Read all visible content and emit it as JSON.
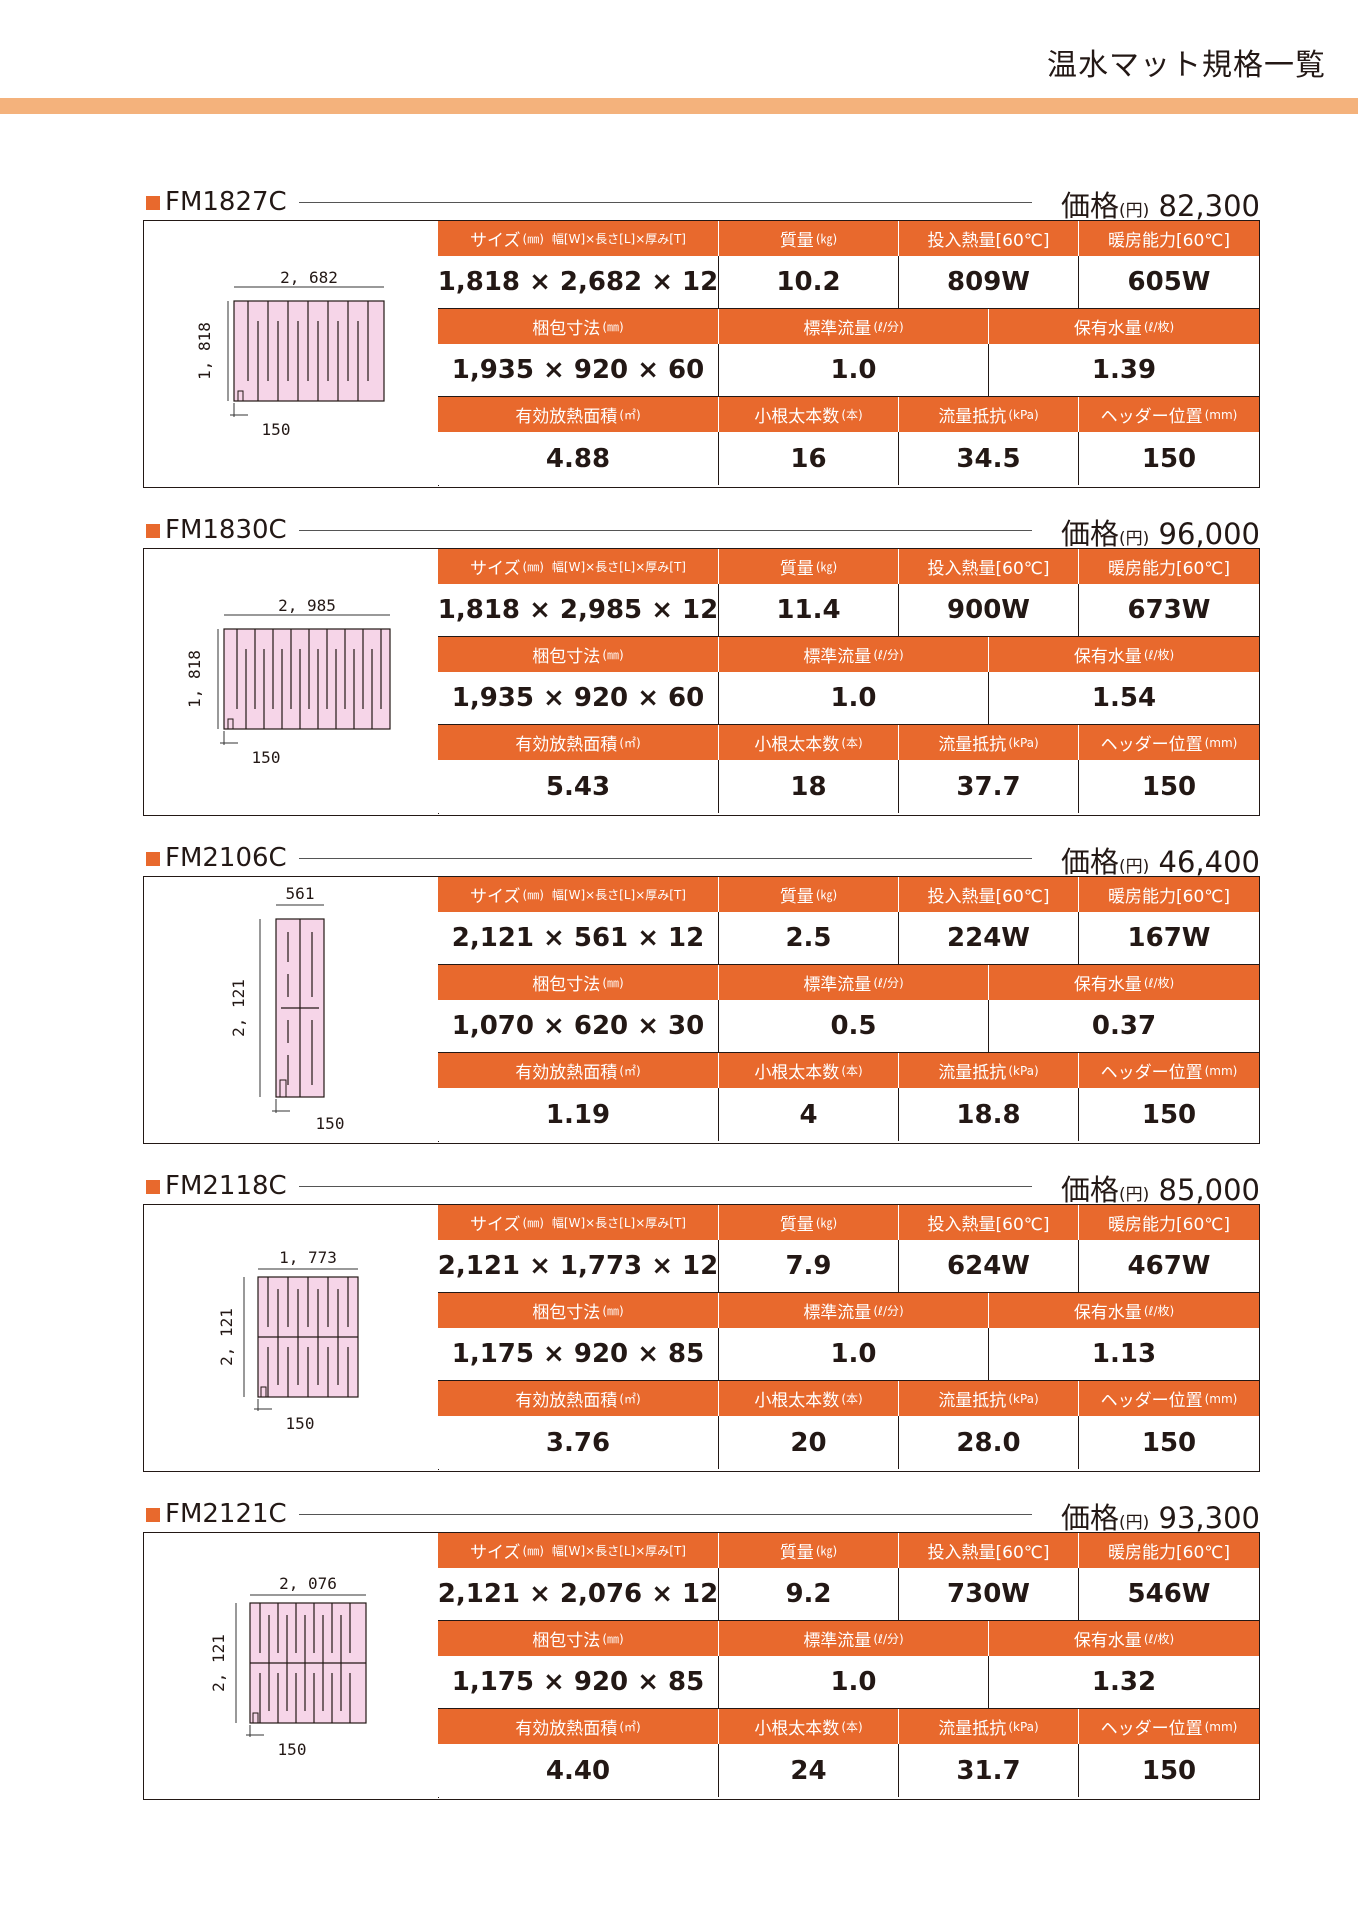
{
  "page_title": "温水マット規格一覧",
  "accent_color": "#e8692d",
  "band_color": "#f4b27c",
  "mat_color": "#f6d5e8",
  "labels": {
    "size": "サイズ",
    "size_unit": "(㎜)",
    "size_detail": "幅[W]×長さ[L]×厚み[T]",
    "mass": "質量",
    "mass_unit": "(㎏)",
    "heat_input": "投入熱量[60℃]",
    "heating_capacity": "暖房能力[60℃]",
    "package": "梱包寸法",
    "package_unit": "(㎜)",
    "std_flow": "標準流量",
    "std_flow_unit": "(ℓ/分)",
    "water_volume": "保有水量",
    "water_volume_unit": "(ℓ/枚)",
    "effective_area": "有効放熱面積",
    "effective_area_unit": "(㎡)",
    "branch_count": "小根太本数",
    "branch_count_unit": "(本)",
    "flow_resistance": "流量抵抗",
    "flow_resistance_unit": "(kPa)",
    "header_position": "ヘッダー位置",
    "header_position_unit": "(mm)",
    "price": "価格",
    "price_unit": "(円)"
  },
  "products": [
    {
      "model": "FM1827C",
      "price": "82,300",
      "size": "1,818 × 2,682 × 12",
      "mass": "10.2",
      "heat_input": "809W",
      "heating_capacity": "605W",
      "package": "1,935 × 920 × 60",
      "std_flow": "1.0",
      "water_volume": "1.39",
      "effective_area": "4.88",
      "branch_count": "16",
      "flow_resistance": "34.5",
      "header_position": "150",
      "diagram": {
        "width_label": "2, 682",
        "height_label": "1, 818",
        "header_label": "150"
      }
    },
    {
      "model": "FM1830C",
      "price": "96,000",
      "size": "1,818 × 2,985 × 12",
      "mass": "11.4",
      "heat_input": "900W",
      "heating_capacity": "673W",
      "package": "1,935 × 920 × 60",
      "std_flow": "1.0",
      "water_volume": "1.54",
      "effective_area": "5.43",
      "branch_count": "18",
      "flow_resistance": "37.7",
      "header_position": "150",
      "diagram": {
        "width_label": "2, 985",
        "height_label": "1, 818",
        "header_label": "150"
      }
    },
    {
      "model": "FM2106C",
      "price": "46,400",
      "size": "2,121 × 561 × 12",
      "mass": "2.5",
      "heat_input": "224W",
      "heating_capacity": "167W",
      "package": "1,070 × 620 × 30",
      "std_flow": "0.5",
      "water_volume": "0.37",
      "effective_area": "1.19",
      "branch_count": "4",
      "flow_resistance": "18.8",
      "header_position": "150",
      "diagram": {
        "width_label": "561",
        "height_label": "2, 121",
        "header_label": "150"
      }
    },
    {
      "model": "FM2118C",
      "price": "85,000",
      "size": "2,121 × 1,773 × 12",
      "mass": "7.9",
      "heat_input": "624W",
      "heating_capacity": "467W",
      "package": "1,175 × 920 × 85",
      "std_flow": "1.0",
      "water_volume": "1.13",
      "effective_area": "3.76",
      "branch_count": "20",
      "flow_resistance": "28.0",
      "header_position": "150",
      "diagram": {
        "width_label": "1, 773",
        "height_label": "2, 121",
        "header_label": "150"
      }
    },
    {
      "model": "FM2121C",
      "price": "93,300",
      "size": "2,121 × 2,076 × 12",
      "mass": "9.2",
      "heat_input": "730W",
      "heating_capacity": "546W",
      "package": "1,175 × 920 × 85",
      "std_flow": "1.0",
      "water_volume": "1.32",
      "effective_area": "4.40",
      "branch_count": "24",
      "flow_resistance": "31.7",
      "header_position": "150",
      "diagram": {
        "width_label": "2, 076",
        "height_label": "2, 121",
        "header_label": "150"
      }
    }
  ]
}
